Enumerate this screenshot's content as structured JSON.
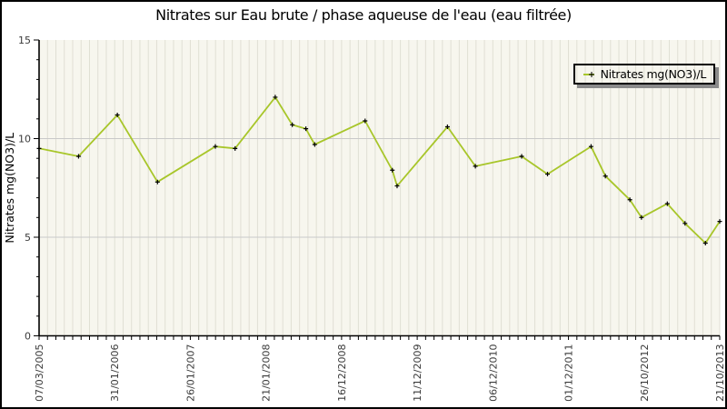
{
  "chart_data": {
    "type": "line",
    "title": "Nitrates sur Eau brute / phase aqueuse de l'eau (eau filtrée)",
    "ylabel": "Nitrates mg(NO3)/L",
    "xlabel": "",
    "ylim": [
      0,
      15
    ],
    "yticks": [
      0,
      5,
      10,
      15
    ],
    "y_minor_tick_step": 1,
    "x_minor_tick_intervals": 81,
    "x_labels_every_n_ticks": 9,
    "x_tick_labels": [
      "07/03/2005",
      "31/01/2006",
      "26/01/2007",
      "21/01/2008",
      "16/12/2008",
      "11/12/2009",
      "06/12/2010",
      "01/12/2011",
      "26/10/2012",
      "21/10/2013"
    ],
    "legend": {
      "label": "Nitrates mg(NO3)/L",
      "position": "top-right"
    },
    "grid": {
      "vertical_minor": true,
      "horizontal_at": [
        5,
        10
      ]
    },
    "series": [
      {
        "name": "Nitrates mg(NO3)/L",
        "color": "#a8c62a",
        "marker": "plus",
        "marker_color": "#000000",
        "points_format": "[x_fraction_of_axis, value_mg_NO3_per_L]",
        "points": [
          [
            0.0,
            9.5
          ],
          [
            0.058,
            9.1
          ],
          [
            0.115,
            11.2
          ],
          [
            0.174,
            7.8
          ],
          [
            0.259,
            9.6
          ],
          [
            0.288,
            9.5
          ],
          [
            0.347,
            12.1
          ],
          [
            0.372,
            10.7
          ],
          [
            0.392,
            10.5
          ],
          [
            0.405,
            9.7
          ],
          [
            0.479,
            10.9
          ],
          [
            0.519,
            8.4
          ],
          [
            0.526,
            7.6
          ],
          [
            0.6,
            10.6
          ],
          [
            0.641,
            8.6
          ],
          [
            0.709,
            9.1
          ],
          [
            0.747,
            8.2
          ],
          [
            0.811,
            9.6
          ],
          [
            0.832,
            8.1
          ],
          [
            0.868,
            6.9
          ],
          [
            0.885,
            6.0
          ],
          [
            0.923,
            6.7
          ],
          [
            0.949,
            5.7
          ],
          [
            0.979,
            4.7
          ],
          [
            1.0,
            5.8
          ]
        ]
      }
    ],
    "colors": {
      "plot_bg": "#f7f6ee",
      "stripe": "#e0dfd4",
      "hgrid": "#c9c9c9",
      "axis": "#000000",
      "tick_text": "#3a3a3a",
      "legend_shadow": "#8a8a8a"
    }
  }
}
